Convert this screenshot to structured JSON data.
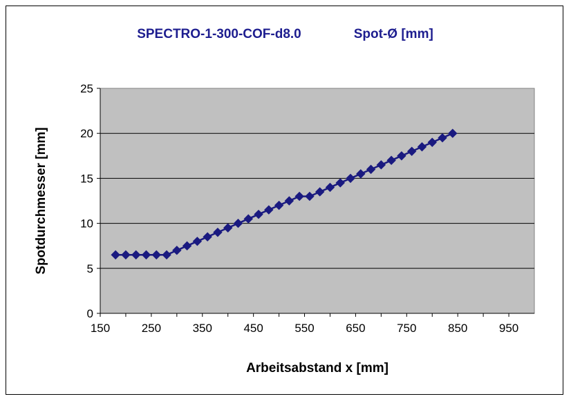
{
  "chart_data": {
    "type": "scatter",
    "title": "SPECTRO-1-300-COF-d8.0",
    "subtitle": "Spot-Ø [mm]",
    "xlabel": "Arbeitsabstand x [mm]",
    "ylabel": "Spotdurchmesser [mm]",
    "xlim": [
      150,
      1000
    ],
    "ylim": [
      0,
      25
    ],
    "x_ticks": [
      "150",
      "250",
      "350",
      "450",
      "550",
      "650",
      "750",
      "850",
      "950"
    ],
    "y_ticks": [
      "0",
      "5",
      "10",
      "15",
      "20",
      "25"
    ],
    "grid": "horizontal",
    "legend": "none",
    "marker": "diamond",
    "line": true,
    "series": [
      {
        "x": [
          180,
          200,
          220,
          240,
          260,
          280,
          300,
          320,
          340,
          360,
          380,
          400,
          420,
          440,
          460,
          480,
          500,
          520,
          540,
          560,
          580,
          600,
          620,
          640,
          660,
          680,
          700,
          720,
          740,
          760,
          780,
          800,
          820,
          840
        ],
        "values": [
          6.5,
          6.5,
          6.5,
          6.5,
          6.5,
          6.5,
          7.0,
          7.5,
          8.0,
          8.5,
          9.0,
          9.5,
          10.0,
          10.5,
          11.0,
          11.5,
          12.0,
          12.5,
          13.0,
          13.0,
          13.5,
          14.0,
          14.5,
          15.0,
          15.5,
          16.0,
          16.5,
          17.0,
          17.5,
          18.0,
          18.5,
          19.0,
          19.5,
          20.0
        ]
      }
    ],
    "colors": {
      "series": "#1a1a80",
      "plot_bg": "#c0c0c0",
      "title": "#1d1d8f",
      "grid": "#000000"
    }
  }
}
